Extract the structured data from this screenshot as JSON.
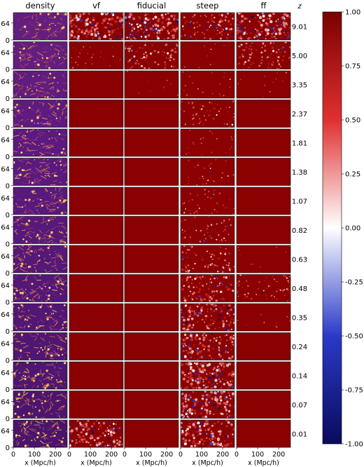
{
  "chart_data": {
    "type": "heatmap",
    "columns": [
      "density",
      "vf",
      "fiducial",
      "steep",
      "ff"
    ],
    "row_header": "z",
    "redshifts": [
      "9.01",
      "5.00",
      "3.35",
      "2.37",
      "1.81",
      "1.38",
      "1.07",
      "0.82",
      "0.63",
      "0.48",
      "0.35",
      "0.24",
      "0.14",
      "0.07",
      "0.01"
    ],
    "y_ticks": [
      "64",
      "0"
    ],
    "bottom_y_ticks": [
      "64",
      "0"
    ],
    "x_ticks": [
      "0",
      "100",
      "200"
    ],
    "xlabel": "x (Mpc/h)",
    "colorbar": {
      "range": [
        -1.0,
        1.0
      ],
      "ticks": [
        "1.00",
        "0.75",
        "0.50",
        "0.25",
        "0.00",
        "-0.25",
        "-0.50",
        "-0.75",
        "-1.00"
      ],
      "tick_values": [
        1.0,
        0.75,
        0.5,
        0.25,
        0.0,
        -0.25,
        -0.5,
        -0.75,
        -1.0
      ],
      "colormap": [
        "#0a0a5c",
        "#2a3ac8",
        "#ffffff",
        "#e03030",
        "#7a0000"
      ]
    },
    "density_colormap": [
      "#1a0433",
      "#5a1a80",
      "#b03a70",
      "#f0903a",
      "#fce080"
    ],
    "ionized_color": "#8b0000",
    "structure_intensity": [
      [
        0,
        0.8,
        0.75,
        0.5,
        0.8
      ],
      [
        0,
        0.15,
        0.45,
        0.05,
        0.45
      ],
      [
        0,
        0.0,
        0.05,
        0.12,
        0.08
      ],
      [
        0,
        0.0,
        0.0,
        0.3,
        0.0
      ],
      [
        0,
        0.0,
        0.0,
        0.12,
        0.0
      ],
      [
        0,
        0.0,
        0.0,
        0.18,
        0.0
      ],
      [
        0,
        0.0,
        0.0,
        0.25,
        0.0
      ],
      [
        0,
        0.0,
        0.0,
        0.3,
        0.0
      ],
      [
        0,
        0.0,
        0.0,
        0.4,
        0.05
      ],
      [
        0,
        0.0,
        0.0,
        0.55,
        0.3
      ],
      [
        0,
        0.0,
        0.0,
        0.65,
        0.05
      ],
      [
        0,
        0.0,
        0.0,
        0.7,
        0.0
      ],
      [
        0,
        0.0,
        0.0,
        0.85,
        0.0
      ],
      [
        0,
        0.0,
        0.0,
        0.8,
        0.0
      ],
      [
        0,
        0.7,
        0.0,
        0.75,
        0.0
      ]
    ]
  }
}
